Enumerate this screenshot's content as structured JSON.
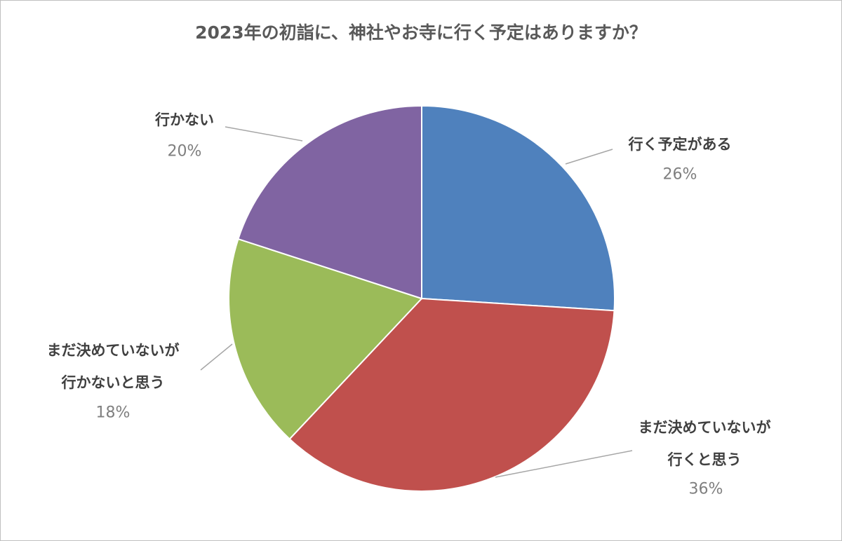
{
  "chart_data": {
    "type": "pie",
    "title": "2023年の初詣に、神社やお寺に行く予定はありますか？",
    "categories": [
      "行く予定がある",
      "まだ決めていないが\n行くと思う",
      "まだ決めていないが\n行かないと思う",
      "行かない"
    ],
    "values": [
      26,
      36,
      18,
      20
    ],
    "value_labels": [
      "26%",
      "36%",
      "18%",
      "20%"
    ],
    "colors": [
      "#4f81bd",
      "#c0504d",
      "#9bbb59",
      "#8064a2"
    ]
  }
}
